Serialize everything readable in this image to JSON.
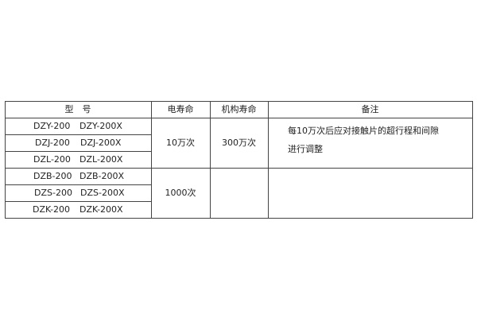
{
  "table": {
    "headers": [
      "型　号",
      "电寿命",
      "机构寿命",
      "备注"
    ],
    "rows": [
      {
        "model": "DZY-200",
        "model_x": "DZY-200X"
      },
      {
        "model": "DZJ-200",
        "model_x": "DZJ-200X"
      },
      {
        "model": "DZL-200",
        "model_x": "DZL-200X"
      },
      {
        "model": "DZB-200",
        "model_x": "DZB-200X"
      },
      {
        "model": "DZS-200",
        "model_x": "DZS-200X"
      },
      {
        "model": "DZK-200",
        "model_x": "DZK-200X"
      }
    ],
    "group1": {
      "electrical_life": "10万次",
      "mechanical_life": "300万次",
      "remark_line1": "每10万次后应对接触片的超行程和间隙",
      "remark_line2": "进行调整"
    },
    "group2": {
      "electrical_life": "1000次"
    }
  }
}
